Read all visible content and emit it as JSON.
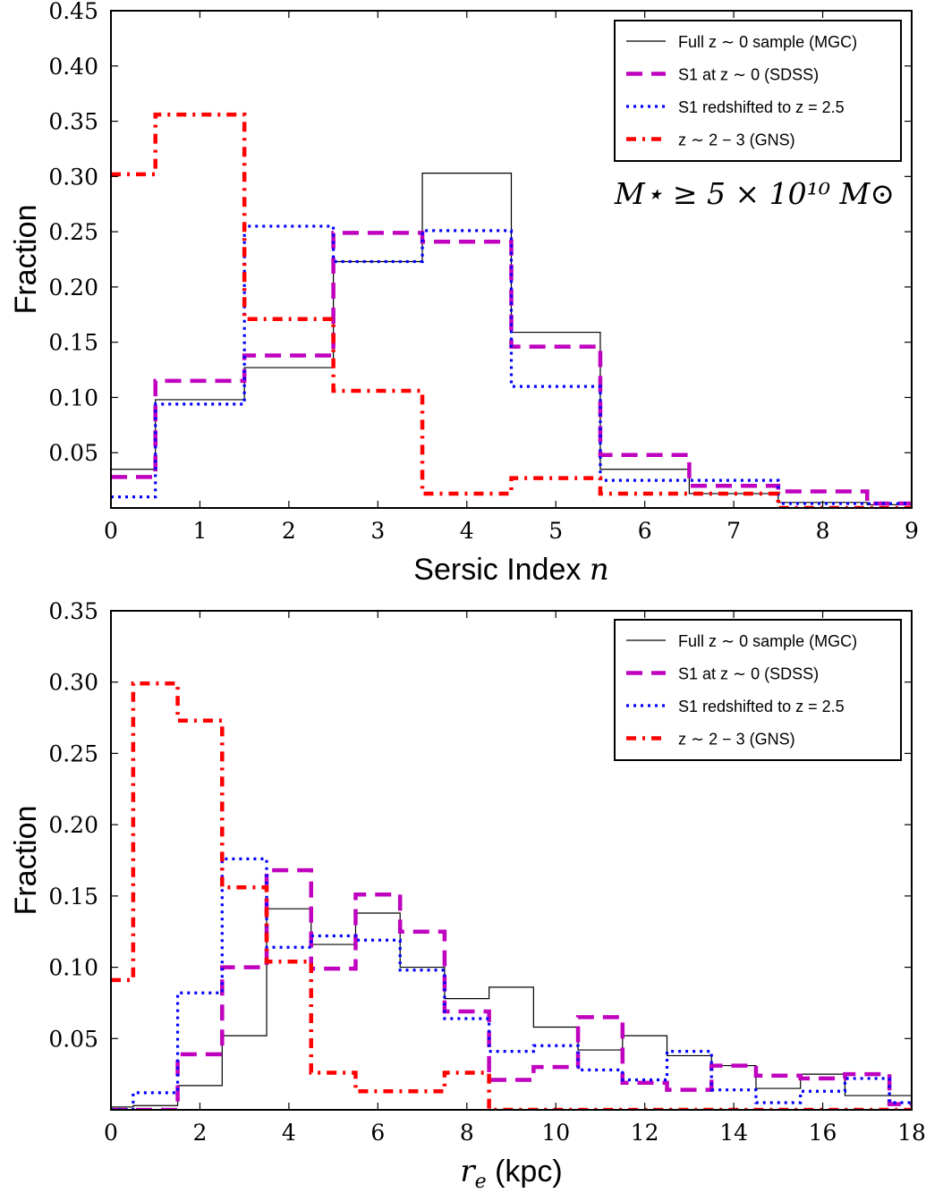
{
  "colors": {
    "mgc": "#000000",
    "sdss": "#bf00bf",
    "s1z25": "#0000ff",
    "gns": "#ff0000"
  },
  "chart_data": [
    {
      "type": "histogram-step",
      "xlabel": "Sersic Index",
      "xlabel_var": "n",
      "ylabel": "Fraction",
      "xlim": [
        0,
        9
      ],
      "ylim": [
        0,
        0.45
      ],
      "xticks": [
        "0",
        "1",
        "2",
        "3",
        "4",
        "5",
        "6",
        "7",
        "8",
        "9"
      ],
      "yticks": [
        "0.05",
        "0.10",
        "0.15",
        "0.20",
        "0.25",
        "0.30",
        "0.35",
        "0.40",
        "0.45"
      ],
      "annotation": "M⋆ ≥ 5 × 10¹⁰ M⊙",
      "legend_position": "top-right",
      "bin_edges": [
        0,
        0.5,
        1.5,
        2.5,
        3.5,
        4.5,
        5.5,
        6.5,
        7.5,
        8.5,
        9
      ],
      "series": [
        {
          "name": "Full z ∼ 0 sample (MGC)",
          "key": "mgc",
          "values": [
            0.035,
            0.098,
            0.127,
            0.223,
            0.303,
            0.159,
            0.035,
            0.013,
            0.005,
            0.003
          ]
        },
        {
          "name": "S1 at z ∼ 0 (SDSS)",
          "key": "sdss",
          "values": [
            0.028,
            0.115,
            0.138,
            0.249,
            0.241,
            0.146,
            0.048,
            0.02,
            0.015,
            0.004
          ]
        },
        {
          "name": "S1 redshifted to z = 2.5",
          "key": "s1z25",
          "values": [
            0.01,
            0.094,
            0.255,
            0.223,
            0.251,
            0.11,
            0.025,
            0.025,
            0.004,
            0.004
          ]
        },
        {
          "name": "z ∼ 2 − 3 (GNS)",
          "key": "gns",
          "values": [
            0.302,
            0.356,
            0.171,
            0.106,
            0.013,
            0.027,
            0.013,
            0.013,
            0.0,
            0.0
          ]
        }
      ]
    },
    {
      "type": "histogram-step",
      "xlabel": "(kpc)",
      "xlabel_var": "r",
      "xlabel_sub": "e",
      "ylabel": "Fraction",
      "xlim": [
        0,
        18
      ],
      "ylim": [
        0,
        0.35
      ],
      "xticks": [
        "0",
        "2",
        "4",
        "6",
        "8",
        "10",
        "12",
        "14",
        "16",
        "18"
      ],
      "yticks": [
        "0.05",
        "0.10",
        "0.15",
        "0.20",
        "0.25",
        "0.30",
        "0.35"
      ],
      "legend_position": "top-right",
      "bin_edges": [
        0,
        0.5,
        1.5,
        2.5,
        3.5,
        4.5,
        5.5,
        6.5,
        7.5,
        8.5,
        9.5,
        10.5,
        11.5,
        12.5,
        13.5,
        14.5,
        15.5,
        16.5,
        17.5,
        18
      ],
      "series": [
        {
          "name": "Full z ∼ 0 sample (MGC)",
          "key": "mgc",
          "values": [
            0.002,
            0.003,
            0.017,
            0.052,
            0.141,
            0.116,
            0.138,
            0.1,
            0.078,
            0.086,
            0.058,
            0.042,
            0.052,
            0.038,
            0.031,
            0.015,
            0.025,
            0.01,
            0.01
          ]
        },
        {
          "name": "S1 at z ∼ 0 (SDSS)",
          "key": "sdss",
          "values": [
            0.0,
            0.0,
            0.039,
            0.1,
            0.168,
            0.099,
            0.151,
            0.125,
            0.069,
            0.021,
            0.03,
            0.065,
            0.019,
            0.014,
            0.031,
            0.024,
            0.022,
            0.025,
            0.004
          ]
        },
        {
          "name": "S1 redshifted to z = 2.5",
          "key": "s1z25",
          "values": [
            0.0,
            0.012,
            0.082,
            0.176,
            0.114,
            0.122,
            0.119,
            0.098,
            0.064,
            0.041,
            0.045,
            0.028,
            0.021,
            0.041,
            0.014,
            0.005,
            0.013,
            0.022,
            0.005
          ]
        },
        {
          "name": "z ∼ 2 − 3 (GNS)",
          "key": "gns",
          "values": [
            0.091,
            0.299,
            0.273,
            0.156,
            0.104,
            0.026,
            0.013,
            0.013,
            0.026,
            0.0,
            0.0,
            0.0,
            0.0,
            0.0,
            0.0,
            0.0,
            0.0,
            0.0,
            0.0
          ]
        }
      ]
    }
  ]
}
